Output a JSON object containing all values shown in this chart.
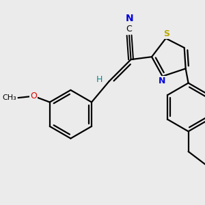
{
  "background_color": "#ebebeb",
  "atom_colors": {
    "C": "#000000",
    "N": "#0000dd",
    "O": "#dd0000",
    "S": "#bbaa00",
    "H": "#008888"
  },
  "bond_color": "#000000",
  "bond_width": 1.6,
  "figsize": [
    3.0,
    3.0
  ],
  "dpi": 100,
  "xlim": [
    -2.8,
    3.2
  ],
  "ylim": [
    -3.2,
    2.8
  ]
}
